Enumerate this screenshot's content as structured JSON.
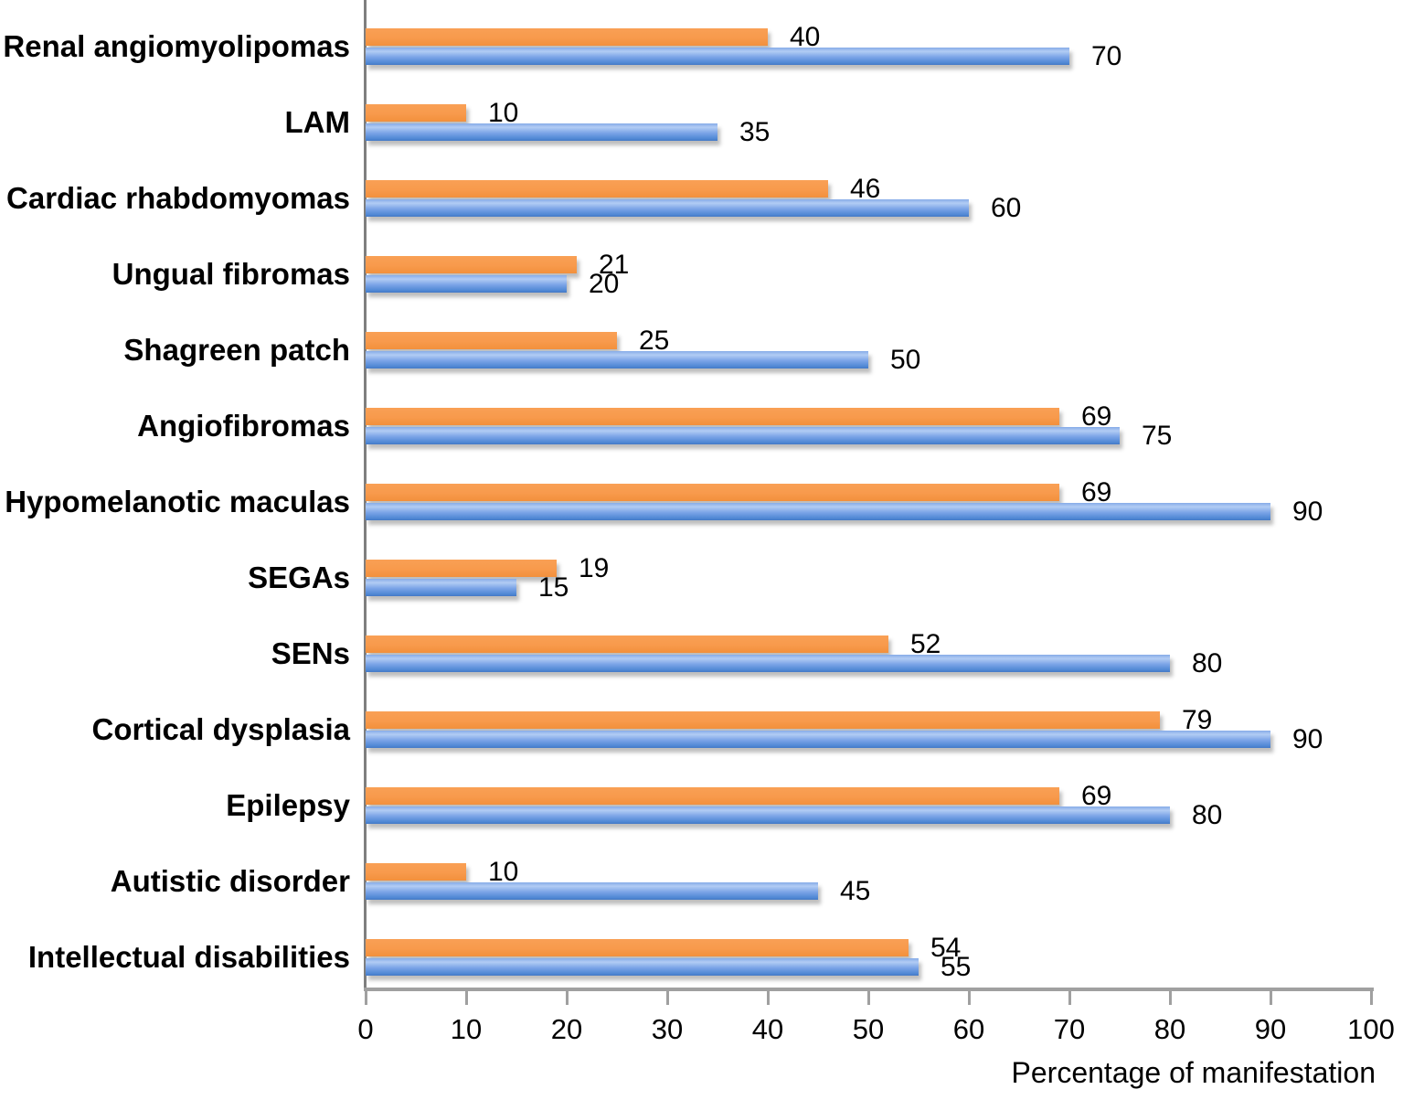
{
  "chart_data": {
    "type": "bar",
    "orientation": "horizontal",
    "title": "",
    "xlabel": "Percentage of manifestation",
    "ylabel": "",
    "xlim": [
      0,
      100
    ],
    "xticks": [
      0,
      10,
      20,
      30,
      40,
      50,
      60,
      70,
      80,
      90,
      100
    ],
    "grid": false,
    "legend_position": "none",
    "value_labels": true,
    "categories": [
      "Renal angiomyolipomas",
      "LAM",
      "Cardiac rhabdomyomas",
      "Ungual fibromas",
      "Shagreen patch",
      "Angiofibromas",
      "Hypomelanotic maculas",
      "SEGAs",
      "SENs",
      "Cortical dysplasia",
      "Epilepsy",
      "Autistic disorder",
      "Intellectual disabilities"
    ],
    "series": [
      {
        "name": "series-orange",
        "color": "#F8994A",
        "values": [
          40,
          10,
          46,
          21,
          25,
          69,
          69,
          19,
          52,
          79,
          69,
          10,
          54
        ]
      },
      {
        "name": "series-blue",
        "color": "#6D9EE4",
        "values": [
          70,
          35,
          60,
          20,
          50,
          75,
          90,
          15,
          80,
          90,
          80,
          45,
          55
        ]
      }
    ]
  },
  "colors": {
    "axis_line": "#7F7F7F",
    "tick_line": "#A0A0A0",
    "text": "#000000",
    "background": "#FFFFFF",
    "bar_orange": "#F8994A",
    "bar_blue": "#6D9EE4"
  }
}
